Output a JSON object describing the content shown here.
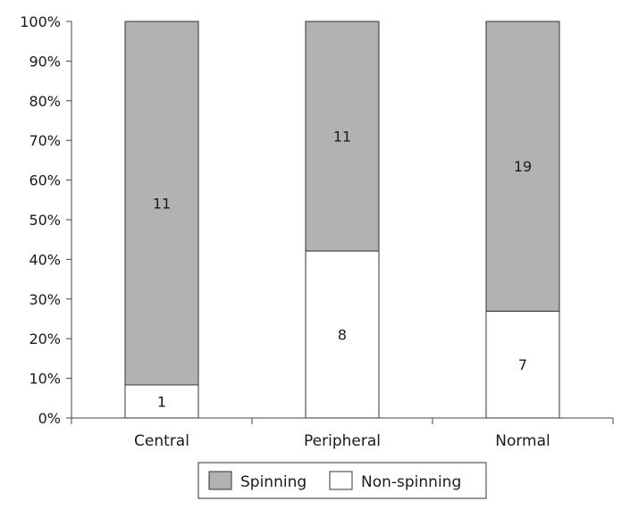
{
  "chart_data": {
    "type": "bar",
    "stacked": true,
    "normalized": true,
    "categories": [
      "Central",
      "Peripheral",
      "Normal"
    ],
    "series": [
      {
        "name": "Non-spinning",
        "values": [
          1,
          8,
          7
        ],
        "color": "#ffffff"
      },
      {
        "name": "Spinning",
        "values": [
          11,
          11,
          19
        ],
        "color": "#b2b2b2"
      }
    ],
    "ylim": [
      0,
      100
    ],
    "y_ticks": [
      "0%",
      "10%",
      "20%",
      "30%",
      "40%",
      "50%",
      "60%",
      "70%",
      "80%",
      "90%",
      "100%"
    ],
    "legend": {
      "position": "bottom",
      "entries": [
        {
          "name": "Spinning",
          "color": "#b2b2b2"
        },
        {
          "name": "Non-spinning",
          "color": "#ffffff"
        }
      ]
    },
    "grid": false
  }
}
